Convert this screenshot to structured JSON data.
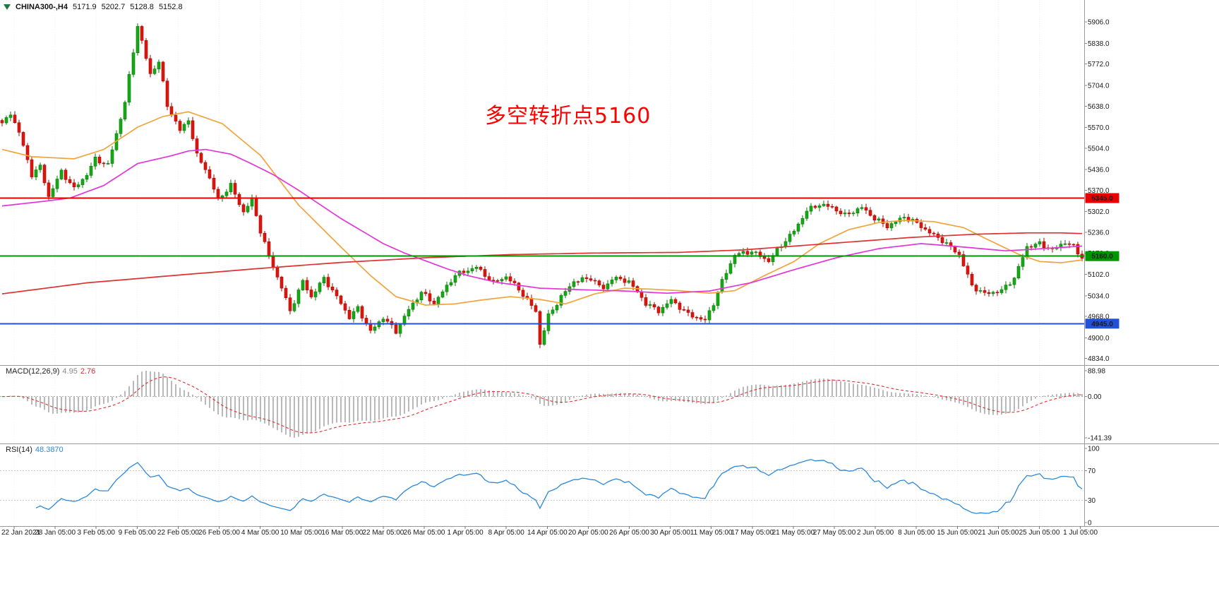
{
  "window": {
    "bg": "#ffffff"
  },
  "chart_data": [
    {
      "type": "candlestick",
      "symbol_period": "CHINA300-,H4",
      "current_ohlc": {
        "open": "5171.9",
        "high": "5202.7",
        "low": "5128.8",
        "close": "5152.8"
      },
      "annotation": {
        "text": "多空转折点5160",
        "color": "#ff0000"
      },
      "y_axis_ticks": [
        "5906.0",
        "5838.0",
        "5772.0",
        "5704.0",
        "5638.0",
        "5570.0",
        "5504.0",
        "5436.0",
        "5370.0",
        "5302.0",
        "5236.0",
        "5170.0",
        "5102.0",
        "5034.0",
        "4968.0",
        "4900.0",
        "4834.0"
      ],
      "x_axis_labels": [
        "22 Jan 2021",
        "28 Jan 05:00",
        "3 Feb 05:00",
        "9 Feb 05:00",
        "22 Feb 05:00",
        "26 Feb 05:00",
        "4 Mar 05:00",
        "10 Mar 05:00",
        "16 Mar 05:00",
        "22 Mar 05:00",
        "26 Mar 05:00",
        "1 Apr 05:00",
        "8 Apr 05:00",
        "14 Apr 05:00",
        "20 Apr 05:00",
        "26 Apr 05:00",
        "30 Apr 05:00",
        "11 May 05:00",
        "17 May 05:00",
        "21 May 05:00",
        "27 May 05:00",
        "2 Jun 05:00",
        "8 Jun 05:00",
        "15 Jun 05:00",
        "21 Jun 05:00",
        "25 Jun 05:00",
        "1 Jul 05:00"
      ],
      "y_range": [
        4813,
        5976
      ],
      "price_lines": [
        {
          "price": 5345.0,
          "label": "5345.0",
          "color": "#e80000"
        },
        {
          "price": 5160.0,
          "label": "5160.0",
          "color": "#009600"
        },
        {
          "price": 4945.0,
          "label": "4945.0",
          "color": "#2251d6"
        }
      ],
      "candles": {
        "count": 256,
        "wiggle_amp": 8,
        "up_color": "#12ac12",
        "up_edge": "#077807",
        "down_color": "#e41309",
        "down_edge": "#9d0b05",
        "close_keyframes": [
          [
            0,
            5580
          ],
          [
            2,
            5615
          ],
          [
            4,
            5555
          ],
          [
            7,
            5420
          ],
          [
            9,
            5445
          ],
          [
            11,
            5350
          ],
          [
            14,
            5430
          ],
          [
            17,
            5375
          ],
          [
            20,
            5420
          ],
          [
            22,
            5470
          ],
          [
            25,
            5450
          ],
          [
            29,
            5650
          ],
          [
            32,
            5895
          ],
          [
            34,
            5790
          ],
          [
            35,
            5740
          ],
          [
            37,
            5780
          ],
          [
            39,
            5640
          ],
          [
            42,
            5560
          ],
          [
            44,
            5595
          ],
          [
            46,
            5480
          ],
          [
            48,
            5440
          ],
          [
            51,
            5340
          ],
          [
            54,
            5385
          ],
          [
            57,
            5300
          ],
          [
            59,
            5340
          ],
          [
            61,
            5240
          ],
          [
            63,
            5160
          ],
          [
            66,
            5060
          ],
          [
            68,
            4985
          ],
          [
            71,
            5080
          ],
          [
            73,
            5030
          ],
          [
            76,
            5090
          ],
          [
            80,
            5010
          ],
          [
            82,
            4965
          ],
          [
            84,
            4995
          ],
          [
            87,
            4920
          ],
          [
            90,
            4965
          ],
          [
            93,
            4920
          ],
          [
            96,
            4990
          ],
          [
            99,
            5045
          ],
          [
            102,
            5010
          ],
          [
            107,
            5100
          ],
          [
            109,
            5110
          ],
          [
            112,
            5125
          ],
          [
            116,
            5075
          ],
          [
            119,
            5095
          ],
          [
            122,
            5055
          ],
          [
            126,
            4985
          ],
          [
            127,
            4880
          ],
          [
            129,
            4970
          ],
          [
            132,
            5030
          ],
          [
            135,
            5080
          ],
          [
            139,
            5090
          ],
          [
            142,
            5055
          ],
          [
            144,
            5090
          ],
          [
            148,
            5080
          ],
          [
            152,
            5010
          ],
          [
            155,
            4985
          ],
          [
            158,
            5020
          ],
          [
            162,
            4975
          ],
          [
            166,
            4955
          ],
          [
            168,
            5010
          ],
          [
            170,
            5080
          ],
          [
            173,
            5165
          ],
          [
            177,
            5175
          ],
          [
            181,
            5145
          ],
          [
            183,
            5180
          ],
          [
            187,
            5240
          ],
          [
            190,
            5305
          ],
          [
            193,
            5325
          ],
          [
            196,
            5315
          ],
          [
            199,
            5290
          ],
          [
            203,
            5315
          ],
          [
            206,
            5280
          ],
          [
            209,
            5255
          ],
          [
            213,
            5285
          ],
          [
            216,
            5265
          ],
          [
            219,
            5235
          ],
          [
            222,
            5210
          ],
          [
            226,
            5165
          ],
          [
            229,
            5065
          ],
          [
            232,
            5040
          ],
          [
            236,
            5050
          ],
          [
            239,
            5090
          ],
          [
            242,
            5190
          ],
          [
            245,
            5200
          ],
          [
            248,
            5180
          ],
          [
            251,
            5205
          ],
          [
            253,
            5190
          ],
          [
            255,
            5152.8
          ]
        ]
      },
      "moving_averages": [
        {
          "name": "fast-ma",
          "color": "#f0a43c",
          "keyframes": [
            [
              0,
              5500
            ],
            [
              7,
              5477
            ],
            [
              17,
              5470
            ],
            [
              24,
              5500
            ],
            [
              32,
              5571
            ],
            [
              38,
              5605
            ],
            [
              44,
              5620
            ],
            [
              52,
              5582
            ],
            [
              61,
              5481
            ],
            [
              70,
              5323
            ],
            [
              80,
              5189
            ],
            [
              87,
              5098
            ],
            [
              93,
              5031
            ],
            [
              100,
              5004
            ],
            [
              107,
              5008
            ],
            [
              113,
              5020
            ],
            [
              120,
              5031
            ],
            [
              127,
              5022
            ],
            [
              133,
              5008
            ],
            [
              140,
              5040
            ],
            [
              147,
              5058
            ],
            [
              153,
              5055
            ],
            [
              160,
              5050
            ],
            [
              167,
              5042
            ],
            [
              173,
              5050
            ],
            [
              180,
              5098
            ],
            [
              187,
              5143
            ],
            [
              193,
              5200
            ],
            [
              200,
              5245
            ],
            [
              207,
              5267
            ],
            [
              213,
              5274
            ],
            [
              220,
              5270
            ],
            [
              227,
              5251
            ],
            [
              233,
              5211
            ],
            [
              240,
              5166
            ],
            [
              245,
              5143
            ],
            [
              250,
              5139
            ],
            [
              255,
              5148
            ]
          ]
        },
        {
          "name": "mid-ma",
          "color": "#e236d8",
          "keyframes": [
            [
              0,
              5320
            ],
            [
              10,
              5335
            ],
            [
              16,
              5345
            ],
            [
              24,
              5385
            ],
            [
              32,
              5455
            ],
            [
              40,
              5480
            ],
            [
              44,
              5495
            ],
            [
              48,
              5500
            ],
            [
              54,
              5485
            ],
            [
              58,
              5460
            ],
            [
              64,
              5420
            ],
            [
              70,
              5370
            ],
            [
              75,
              5325
            ],
            [
              80,
              5280
            ],
            [
              85,
              5240
            ],
            [
              90,
              5200
            ],
            [
              95,
              5170
            ],
            [
              100,
              5145
            ],
            [
              105,
              5120
            ],
            [
              110,
              5098
            ],
            [
              117,
              5076
            ],
            [
              127,
              5058
            ],
            [
              137,
              5053
            ],
            [
              147,
              5049
            ],
            [
              157,
              5042
            ],
            [
              167,
              5049
            ],
            [
              177,
              5076
            ],
            [
              187,
              5117
            ],
            [
              197,
              5155
            ],
            [
              207,
              5184
            ],
            [
              217,
              5200
            ],
            [
              227,
              5189
            ],
            [
              237,
              5177
            ],
            [
              247,
              5185
            ],
            [
              255,
              5192
            ]
          ]
        },
        {
          "name": "slow-ma",
          "color": "#de3333",
          "keyframes": [
            [
              0,
              5040
            ],
            [
              20,
              5075
            ],
            [
              42,
              5100
            ],
            [
              60,
              5120
            ],
            [
              80,
              5140
            ],
            [
              100,
              5155
            ],
            [
              120,
              5165
            ],
            [
              140,
              5170
            ],
            [
              160,
              5172
            ],
            [
              175,
              5180
            ],
            [
              190,
              5195
            ],
            [
              205,
              5210
            ],
            [
              215,
              5220
            ],
            [
              230,
              5230
            ],
            [
              242,
              5234
            ],
            [
              250,
              5234
            ],
            [
              255,
              5232
            ]
          ]
        }
      ]
    },
    {
      "type": "bar",
      "name": "MACD",
      "label": "MACD(12,26,9)",
      "main_value": "4.95",
      "signal_value": "2.76",
      "fast": 12,
      "slow": 26,
      "signal": 9,
      "y_axis_ticks": [
        "88.98",
        "0.00",
        "-141.39"
      ],
      "y_range": [
        -161,
        106
      ],
      "histogram_color": "#b9b9b9",
      "signal_color": "#e03030"
    },
    {
      "type": "line",
      "name": "RSI",
      "label": "RSI(14)",
      "value": "48.3870",
      "period": 14,
      "levels": [
        70,
        30
      ],
      "y_axis_ticks": [
        "100",
        "70",
        "30",
        "0"
      ],
      "y_range": [
        -4.8,
        105.7
      ],
      "line_color": "#2b88d8"
    }
  ]
}
